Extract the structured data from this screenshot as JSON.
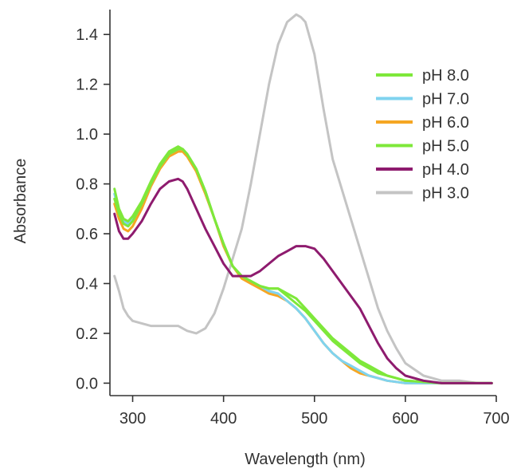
{
  "chart_data": {
    "type": "line",
    "xlabel": "Wavelength (nm)",
    "ylabel": "Absorbance",
    "xlim": [
      275,
      700
    ],
    "ylim": [
      -0.05,
      1.5
    ],
    "xticks": [
      300,
      400,
      500,
      600,
      700
    ],
    "yticks": [
      0.0,
      0.2,
      0.4,
      0.6,
      0.8,
      1.0,
      1.2,
      1.4
    ],
    "ytick_labels": [
      "0.0",
      "0.2",
      "0.4",
      "0.6",
      "0.8",
      "1.0",
      "1.2",
      "1.4"
    ],
    "grid": false,
    "legend_position": "top-right",
    "series": [
      {
        "name": "pH 8.0",
        "color": "#7ee83a",
        "x": [
          280,
          285,
          290,
          295,
          300,
          310,
          320,
          330,
          340,
          350,
          355,
          360,
          370,
          380,
          390,
          400,
          410,
          420,
          430,
          440,
          450,
          460,
          470,
          480,
          490,
          500,
          510,
          520,
          530,
          540,
          550,
          560,
          570,
          580,
          590,
          600,
          620,
          640,
          660,
          680,
          695
        ],
        "y": [
          0.78,
          0.7,
          0.66,
          0.65,
          0.67,
          0.73,
          0.81,
          0.88,
          0.93,
          0.95,
          0.94,
          0.92,
          0.86,
          0.77,
          0.66,
          0.56,
          0.47,
          0.43,
          0.41,
          0.39,
          0.38,
          0.38,
          0.35,
          0.32,
          0.29,
          0.25,
          0.21,
          0.17,
          0.14,
          0.11,
          0.08,
          0.06,
          0.04,
          0.03,
          0.02,
          0.01,
          0.005,
          0.0,
          0.0,
          0.0,
          0.0
        ]
      },
      {
        "name": "pH 7.0",
        "color": "#7fd3ef",
        "x": [
          280,
          285,
          290,
          295,
          300,
          310,
          320,
          330,
          340,
          350,
          355,
          360,
          370,
          380,
          390,
          400,
          410,
          420,
          430,
          440,
          450,
          460,
          470,
          480,
          490,
          500,
          510,
          520,
          530,
          540,
          550,
          560,
          570,
          580,
          590,
          600,
          620,
          640,
          660,
          680,
          695
        ],
        "y": [
          0.76,
          0.69,
          0.65,
          0.64,
          0.66,
          0.72,
          0.8,
          0.87,
          0.92,
          0.94,
          0.94,
          0.92,
          0.86,
          0.77,
          0.66,
          0.56,
          0.47,
          0.43,
          0.41,
          0.39,
          0.37,
          0.36,
          0.33,
          0.3,
          0.26,
          0.21,
          0.16,
          0.12,
          0.09,
          0.07,
          0.05,
          0.03,
          0.02,
          0.01,
          0.005,
          0.0,
          0.0,
          0.0,
          0.0,
          0.0,
          0.0
        ]
      },
      {
        "name": "pH 6.0",
        "color": "#f5a623",
        "x": [
          280,
          285,
          290,
          295,
          300,
          310,
          320,
          330,
          340,
          350,
          355,
          360,
          370,
          380,
          390,
          400,
          410,
          420,
          430,
          440,
          450,
          460,
          470,
          480,
          490,
          500,
          510,
          520,
          530,
          540,
          550,
          560,
          570,
          580,
          590,
          600,
          620,
          640,
          660,
          680,
          695
        ],
        "y": [
          0.72,
          0.66,
          0.62,
          0.61,
          0.63,
          0.7,
          0.79,
          0.86,
          0.91,
          0.93,
          0.93,
          0.91,
          0.85,
          0.76,
          0.66,
          0.55,
          0.47,
          0.42,
          0.4,
          0.38,
          0.36,
          0.35,
          0.33,
          0.3,
          0.26,
          0.21,
          0.16,
          0.12,
          0.09,
          0.06,
          0.04,
          0.03,
          0.02,
          0.01,
          0.005,
          0.0,
          0.0,
          0.0,
          0.0,
          0.0,
          0.0
        ]
      },
      {
        "name": "pH 5.0",
        "color": "#7ee83a",
        "x": [
          280,
          285,
          290,
          295,
          300,
          310,
          320,
          330,
          340,
          350,
          355,
          360,
          370,
          380,
          390,
          400,
          410,
          420,
          430,
          440,
          450,
          460,
          470,
          480,
          490,
          500,
          510,
          520,
          530,
          540,
          550,
          560,
          570,
          580,
          590,
          600,
          620,
          640,
          660,
          680,
          695
        ],
        "y": [
          0.74,
          0.68,
          0.64,
          0.63,
          0.65,
          0.72,
          0.8,
          0.87,
          0.92,
          0.94,
          0.94,
          0.92,
          0.86,
          0.77,
          0.66,
          0.56,
          0.47,
          0.43,
          0.41,
          0.39,
          0.38,
          0.38,
          0.36,
          0.34,
          0.3,
          0.26,
          0.22,
          0.18,
          0.15,
          0.12,
          0.09,
          0.07,
          0.05,
          0.03,
          0.02,
          0.01,
          0.005,
          0.0,
          0.0,
          0.0,
          0.0
        ]
      },
      {
        "name": "pH 4.0",
        "color": "#8e1b6e",
        "x": [
          280,
          285,
          290,
          295,
          300,
          310,
          320,
          330,
          340,
          350,
          355,
          360,
          370,
          380,
          390,
          400,
          410,
          420,
          430,
          440,
          450,
          460,
          470,
          480,
          490,
          500,
          510,
          520,
          530,
          540,
          550,
          560,
          570,
          580,
          590,
          600,
          620,
          640,
          660,
          680,
          695
        ],
        "y": [
          0.68,
          0.61,
          0.58,
          0.58,
          0.6,
          0.65,
          0.72,
          0.78,
          0.81,
          0.82,
          0.81,
          0.78,
          0.7,
          0.62,
          0.55,
          0.48,
          0.43,
          0.43,
          0.43,
          0.45,
          0.48,
          0.51,
          0.53,
          0.55,
          0.55,
          0.54,
          0.5,
          0.45,
          0.4,
          0.35,
          0.3,
          0.23,
          0.16,
          0.1,
          0.06,
          0.03,
          0.01,
          0.0,
          0.0,
          0.0,
          0.0
        ]
      },
      {
        "name": "pH 3.0",
        "color": "#c4c4c4",
        "x": [
          280,
          285,
          290,
          295,
          300,
          310,
          320,
          330,
          340,
          350,
          360,
          370,
          380,
          390,
          400,
          410,
          420,
          430,
          440,
          450,
          460,
          470,
          480,
          485,
          490,
          500,
          510,
          520,
          530,
          540,
          550,
          560,
          570,
          580,
          590,
          600,
          620,
          640,
          660,
          680,
          695
        ],
        "y": [
          0.43,
          0.37,
          0.3,
          0.27,
          0.25,
          0.24,
          0.23,
          0.23,
          0.23,
          0.23,
          0.21,
          0.2,
          0.22,
          0.28,
          0.38,
          0.5,
          0.62,
          0.8,
          1.0,
          1.2,
          1.36,
          1.45,
          1.48,
          1.47,
          1.45,
          1.32,
          1.1,
          0.9,
          0.78,
          0.66,
          0.54,
          0.42,
          0.3,
          0.21,
          0.14,
          0.08,
          0.03,
          0.01,
          0.01,
          0.0,
          0.0
        ]
      }
    ]
  }
}
